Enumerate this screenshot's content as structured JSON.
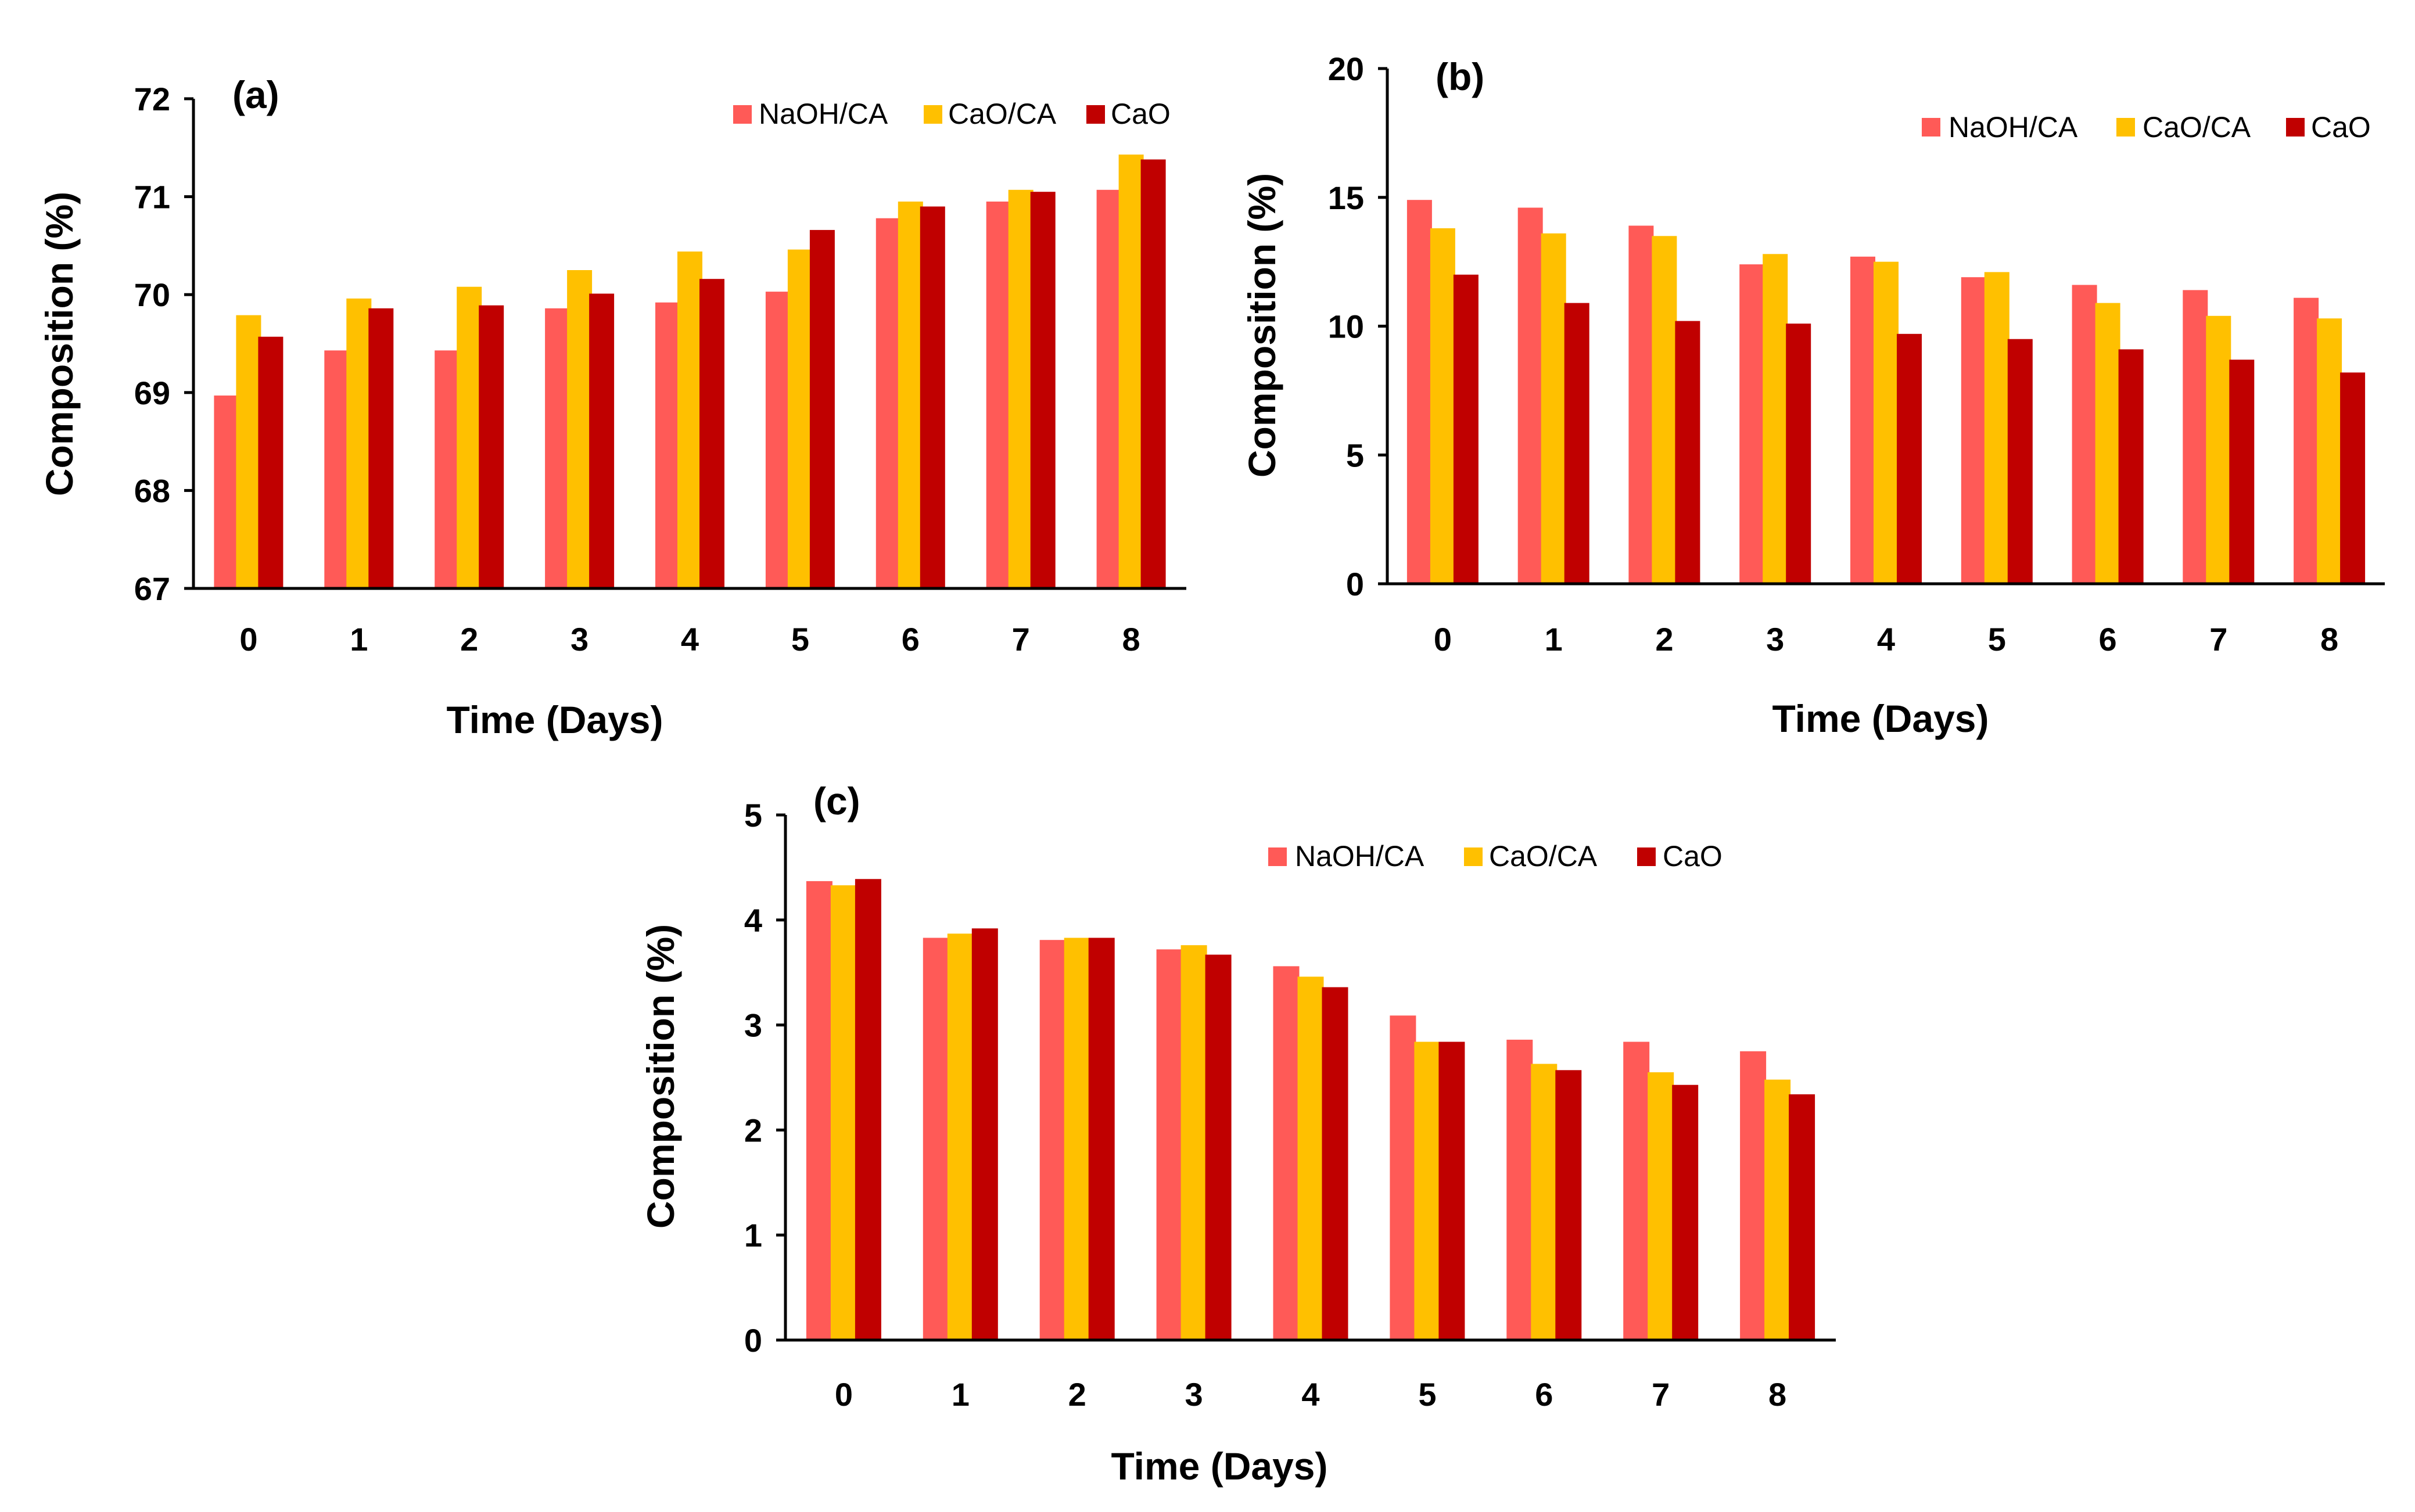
{
  "colors": {
    "naoh_ca": "#ff5a57",
    "cao_ca": "#ffc000",
    "cao": "#c00000"
  },
  "chart_data": [
    {
      "type": "bar",
      "panel_label": "(a)",
      "xlabel": "Time (Days)",
      "ylabel": "Composition (%)",
      "categories": [
        "0",
        "1",
        "2",
        "3",
        "4",
        "5",
        "6",
        "7",
        "8"
      ],
      "ylim": [
        67,
        72
      ],
      "yticks": [
        67,
        68,
        69,
        70,
        71,
        72
      ],
      "grid": false,
      "legend": "top-right",
      "series": [
        {
          "name": "NaOH/CA",
          "color": "#ff5a57",
          "values": [
            68.97,
            69.43,
            69.43,
            69.86,
            69.92,
            70.03,
            70.78,
            70.95,
            71.07
          ]
        },
        {
          "name": "CaO/CA",
          "color": "#ffc000",
          "values": [
            69.79,
            69.96,
            70.08,
            70.25,
            70.44,
            70.46,
            70.95,
            71.07,
            71.43
          ]
        },
        {
          "name": "CaO",
          "color": "#c00000",
          "values": [
            69.57,
            69.86,
            69.89,
            70.01,
            70.16,
            70.66,
            70.9,
            71.05,
            71.38
          ]
        }
      ]
    },
    {
      "type": "bar",
      "panel_label": "(b)",
      "xlabel": "Time (Days)",
      "ylabel": "Composition (%)",
      "categories": [
        "0",
        "1",
        "2",
        "3",
        "4",
        "5",
        "6",
        "7",
        "8"
      ],
      "ylim": [
        0,
        20
      ],
      "yticks": [
        0,
        5,
        10,
        15,
        20
      ],
      "grid": false,
      "legend": "top-right",
      "series": [
        {
          "name": "NaOH/CA",
          "color": "#ff5a57",
          "values": [
            14.9,
            14.6,
            13.9,
            12.4,
            12.7,
            11.9,
            11.6,
            11.4,
            11.1
          ]
        },
        {
          "name": "CaO/CA",
          "color": "#ffc000",
          "values": [
            13.8,
            13.6,
            13.5,
            12.8,
            12.5,
            12.1,
            10.9,
            10.4,
            10.3
          ]
        },
        {
          "name": "CaO",
          "color": "#c00000",
          "values": [
            12.0,
            10.9,
            10.2,
            10.1,
            9.7,
            9.5,
            9.1,
            8.7,
            8.2
          ]
        }
      ]
    },
    {
      "type": "bar",
      "panel_label": "(c)",
      "xlabel": "Time (Days)",
      "ylabel": "Composition (%)",
      "categories": [
        "0",
        "1",
        "2",
        "3",
        "4",
        "5",
        "6",
        "7",
        "8"
      ],
      "ylim": [
        0,
        5
      ],
      "yticks": [
        0,
        1,
        2,
        3,
        4,
        5
      ],
      "grid": false,
      "legend": "top-right",
      "series": [
        {
          "name": "NaOH/CA",
          "color": "#ff5a57",
          "values": [
            4.37,
            3.83,
            3.81,
            3.72,
            3.56,
            3.09,
            2.86,
            2.84,
            2.75
          ]
        },
        {
          "name": "CaO/CA",
          "color": "#ffc000",
          "values": [
            4.33,
            3.87,
            3.83,
            3.76,
            3.46,
            2.84,
            2.63,
            2.55,
            2.48
          ]
        },
        {
          "name": "CaO",
          "color": "#c00000",
          "values": [
            4.39,
            3.92,
            3.83,
            3.67,
            3.36,
            2.84,
            2.57,
            2.43,
            2.34
          ]
        }
      ]
    }
  ]
}
